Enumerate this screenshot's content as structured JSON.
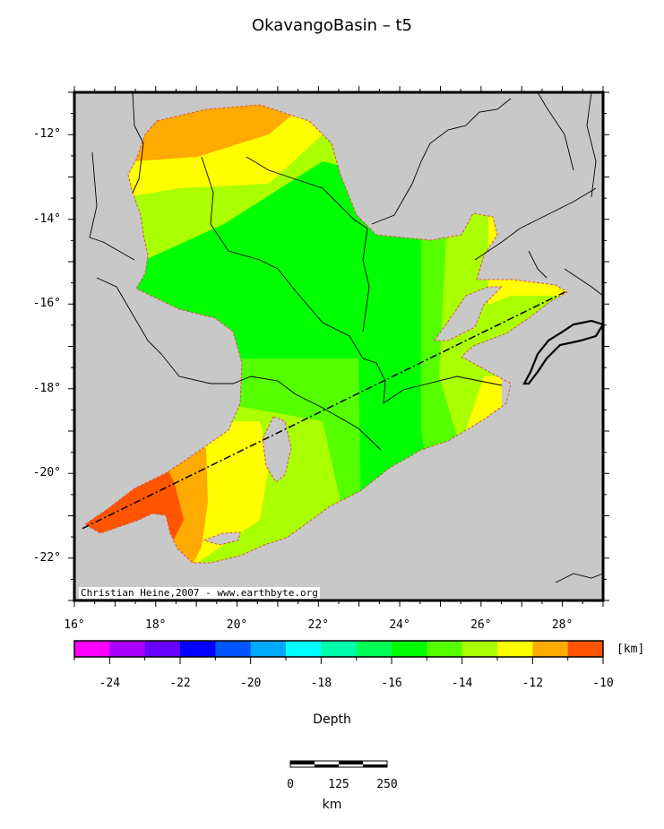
{
  "title": "OkavangoBasin – t5",
  "credit": "Christian Heine,2007 - www.earthbyte.org",
  "map": {
    "lon_range": [
      16,
      29
    ],
    "lat_range": [
      -23,
      -11
    ],
    "lon_ticks": [
      "16°",
      "18°",
      "20°",
      "22°",
      "24°",
      "26°",
      "28°"
    ],
    "lat_ticks": [
      "-12°",
      "-14°",
      "-16°",
      "-18°",
      "-20°",
      "-22°"
    ],
    "background_color": "#c8c8c8",
    "outline_color": "#e05050",
    "profile_line": {
      "from": [
        16.2,
        -21.3
      ],
      "to": [
        28.1,
        -15.7
      ]
    }
  },
  "colorbar": {
    "title": "Depth",
    "unit": "[km]",
    "tick_labels": [
      "-24",
      "-22",
      "-20",
      "-18",
      "-16",
      "-14",
      "-12",
      "-10"
    ],
    "range": [
      -25,
      -10
    ],
    "colors": [
      "#ff00ff",
      "#aa00ff",
      "#6600ff",
      "#0000ff",
      "#0055ff",
      "#00aaff",
      "#00ffff",
      "#00ffaa",
      "#00ff55",
      "#00ff00",
      "#55ff00",
      "#aaff00",
      "#ffff00",
      "#ffaa00",
      "#ff5500"
    ]
  },
  "scalebar": {
    "labels": [
      "0",
      "125",
      "250"
    ],
    "unit": "km"
  }
}
